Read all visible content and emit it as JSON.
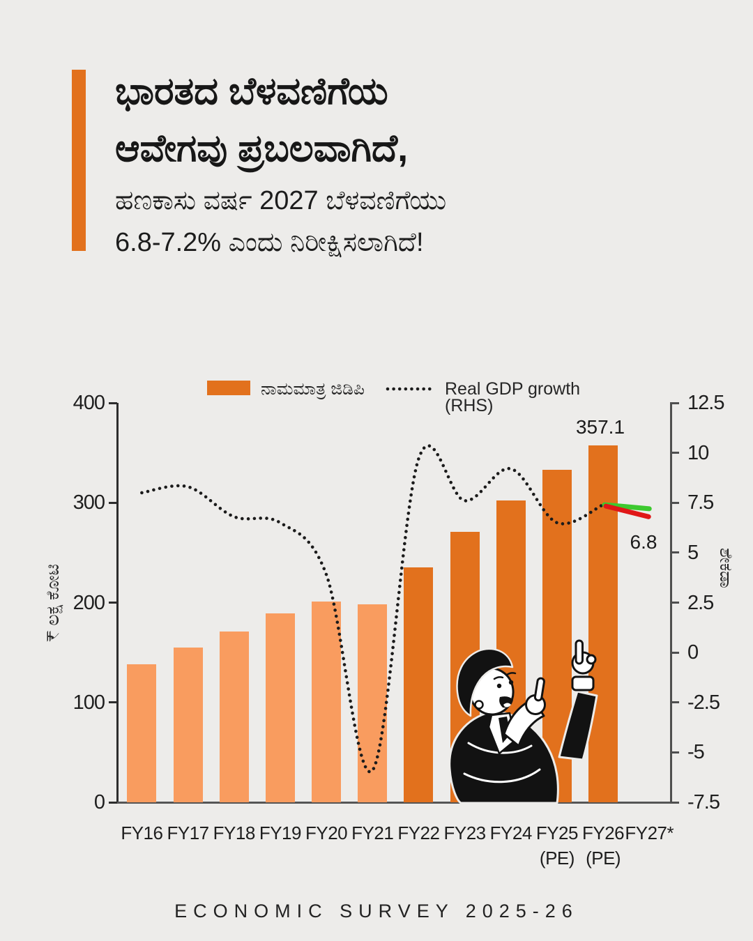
{
  "page": {
    "background": "#EDECEA",
    "footer": "ECONOMIC SURVEY 2025-26"
  },
  "header": {
    "accent_color": "#E2711D",
    "title_line1": "ಭಾರತದ ಬೆಳವಣಿಗೆಯ",
    "title_line2": "ಆವೇಗವು ಪ್ರಬಲವಾಗಿದೆ,",
    "subtitle_line1": "ಹಣಕಾಸು ವರ್ಷ 2027 ಬೆಳವಣಿಗೆಯು",
    "subtitle_line2": "6.8-7.2% ಎಂದು ನಿರೀಕ್ಷಿಸಲಾಗಿದೆ!"
  },
  "legend": {
    "bar_label": "ನಾಮಮಾತ್ರ ಜಿಡಿಪಿ",
    "line_label": "Real GDP growth (RHS)"
  },
  "chart_data": {
    "type": "bar",
    "categories": [
      "FY16",
      "FY17",
      "FY18",
      "FY19",
      "FY20",
      "FY21",
      "FY22",
      "FY23",
      "FY24",
      "FY25",
      "FY26",
      "FY27*"
    ],
    "category_sublabels": [
      "",
      "",
      "",
      "",
      "",
      "",
      "",
      "",
      "",
      "(PE)",
      "(PE)",
      ""
    ],
    "series": [
      {
        "name": "ನಾಮಮಾತ್ರ ಜಿಡಿಪಿ",
        "type": "bar",
        "axis": "left",
        "values": [
          138,
          155,
          171,
          189,
          201,
          198,
          235,
          271,
          302,
          333,
          357.1
        ],
        "light_color": "#F99C5F",
        "dark_color": "#E2711D",
        "light_count": 6
      },
      {
        "name": "Real GDP growth (RHS)",
        "type": "dotted-line",
        "axis": "right",
        "color": "#1b1b1b",
        "values": [
          8.0,
          8.3,
          6.8,
          6.5,
          3.9,
          -5.9,
          9.7,
          7.6,
          9.2,
          6.5,
          7.4
        ]
      },
      {
        "name": "FY27 projection upper",
        "type": "line",
        "axis": "right",
        "color": "#3DC92F",
        "from_category": "FY26",
        "to_category": "FY27*",
        "values": [
          7.4,
          7.2
        ]
      },
      {
        "name": "FY27 projection lower",
        "type": "line",
        "axis": "right",
        "color": "#E01717",
        "from_category": "FY26",
        "to_category": "FY27*",
        "values": [
          7.33,
          6.8
        ]
      }
    ],
    "left_axis": {
      "label": "₹ ಲಕ್ಷ ಕೋಟಿ",
      "ticks": [
        "400",
        "300",
        "200",
        "100",
        "0"
      ],
      "range": [
        0,
        400
      ]
    },
    "right_axis": {
      "label": "ಶೇಕಡಾ",
      "ticks": [
        "12.5",
        "10",
        "7.5",
        "5",
        "2.5",
        "0",
        "-2.5",
        "-5",
        "-7.5"
      ],
      "range": [
        -7.5,
        12.5
      ]
    },
    "annotations": [
      {
        "text": "357.1",
        "anchor": "FY26-bar-top"
      },
      {
        "text": "6.8",
        "anchor": "forecast-line-end"
      }
    ],
    "legend_position": "top",
    "grid": false
  }
}
